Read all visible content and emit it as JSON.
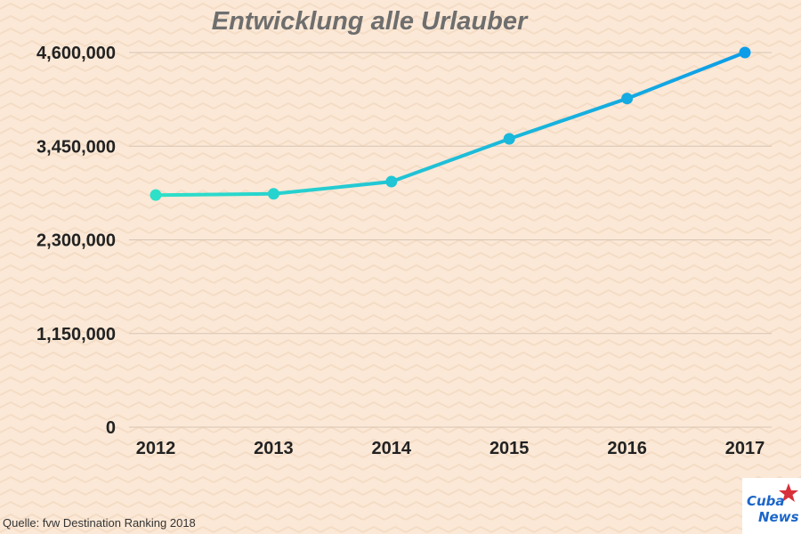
{
  "chart_data": {
    "type": "line",
    "title": "Entwicklung alle Urlauber",
    "categories": [
      "2012",
      "2013",
      "2014",
      "2015",
      "2016",
      "2017"
    ],
    "values": [
      2850000,
      2865000,
      3015000,
      3540000,
      4035000,
      4600000
    ],
    "ylim": [
      0,
      4600000
    ],
    "yticks": [
      0,
      1150000,
      2300000,
      3450000,
      4600000
    ],
    "ytick_labels": [
      "0",
      "1,150,000",
      "2,300,000",
      "3,450,000",
      "4,600,000"
    ],
    "grid": true,
    "colors": {
      "line_start": "#2ee0c8",
      "line_end": "#0d9de8",
      "grid": "#d7c4b2",
      "axis_text": "#222222"
    }
  },
  "footer": {
    "source": "Quelle: fvw Destination Ranking 2018"
  },
  "logo": {
    "line1": "Cuba",
    "line2": "News",
    "colors": {
      "text": "#1b66c9",
      "star": "#d8303a"
    }
  }
}
